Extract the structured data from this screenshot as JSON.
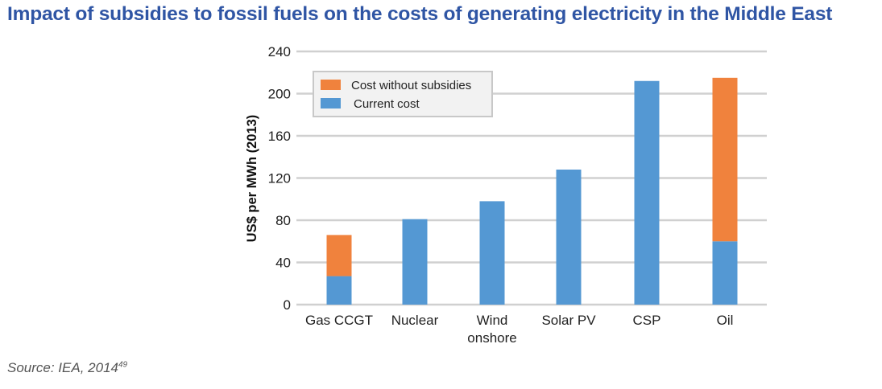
{
  "title": "Impact of subsidies to fossil fuels on the costs of generating electricity in the Middle East",
  "source": {
    "text": "Source: IEA, 2014",
    "superscript": "49"
  },
  "chart_data": {
    "type": "bar",
    "stacked": true,
    "title": "Impact of subsidies to fossil fuels on the costs of generating electricity in the Middle East",
    "xlabel": "",
    "ylabel": "US$ per MWh (2013)",
    "ylim": [
      0,
      240
    ],
    "yticks": [
      "0",
      "40",
      "80",
      "120",
      "160",
      "200",
      "240"
    ],
    "grid": true,
    "legend_position": "top-left",
    "categories": [
      [
        "Gas CCGT"
      ],
      [
        "Nuclear"
      ],
      [
        "Wind",
        "onshore"
      ],
      [
        "Solar PV"
      ],
      [
        "CSP"
      ],
      [
        "Oil"
      ]
    ],
    "series": [
      {
        "name": "Current cost",
        "color": "#5498d3",
        "values": [
          27,
          81,
          98,
          128,
          212,
          60
        ]
      },
      {
        "name": "Cost without subsidies",
        "color": "#f0823d",
        "values": [
          39,
          0,
          0,
          0,
          0,
          155
        ]
      }
    ],
    "legend": [
      "Cost without subsidies",
      "Current cost"
    ]
  }
}
